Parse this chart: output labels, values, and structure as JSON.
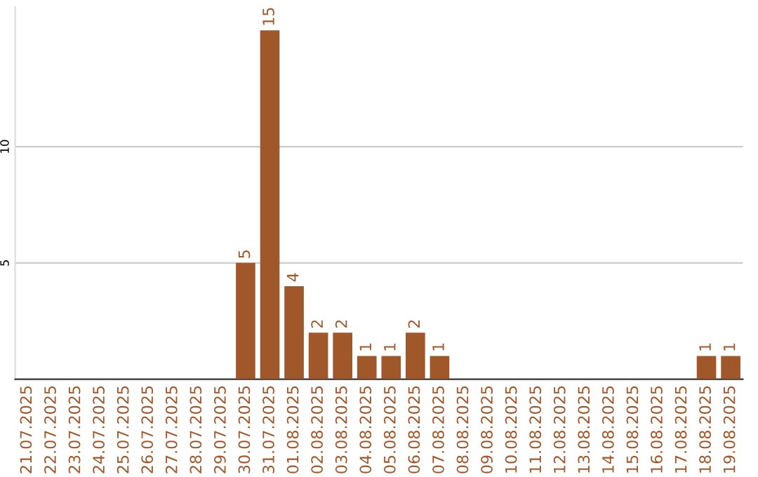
{
  "chart_data": {
    "type": "bar",
    "categories": [
      "21.07.2025",
      "22.07.2025",
      "23.07.2025",
      "24.07.2025",
      "25.07.2025",
      "26.07.2025",
      "27.07.2025",
      "28.07.2025",
      "29.07.2025",
      "30.07.2025",
      "31.07.2025",
      "01.08.2025",
      "02.08.2025",
      "03.08.2025",
      "04.08.2025",
      "05.08.2025",
      "06.08.2025",
      "07.08.2025",
      "08.08.2025",
      "09.08.2025",
      "10.08.2025",
      "11.08.2025",
      "12.08.2025",
      "13.08.2025",
      "14.08.2025",
      "15.08.2025",
      "16.08.2025",
      "17.08.2025",
      "18.08.2025",
      "19.08.2025"
    ],
    "values": [
      0,
      0,
      0,
      0,
      0,
      0,
      0,
      0,
      0,
      5,
      15,
      4,
      2,
      2,
      1,
      1,
      2,
      1,
      0,
      0,
      0,
      0,
      0,
      0,
      0,
      0,
      0,
      0,
      1,
      1
    ],
    "value_labels": [
      null,
      null,
      null,
      null,
      null,
      null,
      null,
      null,
      null,
      "5",
      "15",
      "4",
      "2",
      "2",
      "1",
      "1",
      "2",
      "1",
      null,
      null,
      null,
      null,
      null,
      null,
      null,
      null,
      null,
      null,
      "1",
      "1"
    ],
    "color": "#a0572a",
    "ylim": [
      0,
      16
    ],
    "yticks": [
      5,
      10
    ],
    "grid": "y"
  }
}
